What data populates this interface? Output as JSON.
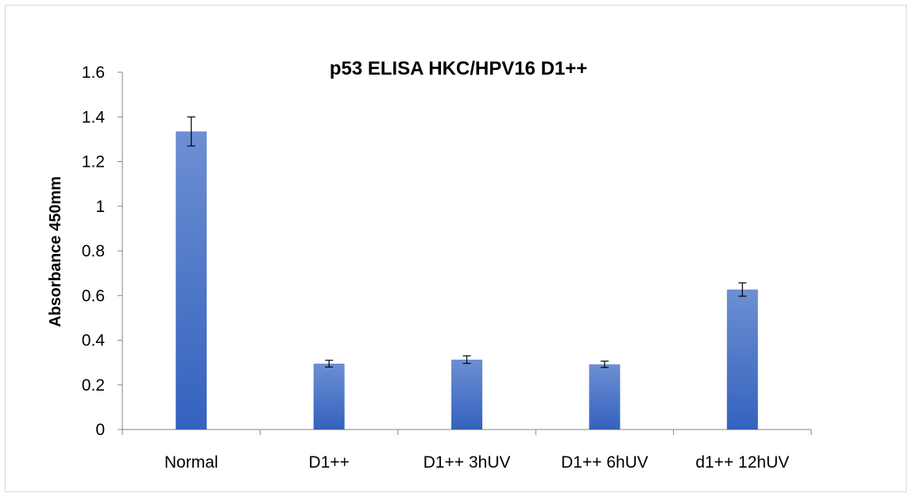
{
  "chart_data": {
    "type": "bar",
    "title": "p53 ELISA HKC/HPV16 D1++",
    "xlabel": "",
    "ylabel": "Absorbance 450mm",
    "categories": [
      "Normal",
      "D1++",
      "D1++ 3hUV",
      "D1++ 6hUV",
      "d1++ 12hUV"
    ],
    "values": [
      1.335,
      0.295,
      0.313,
      0.292,
      0.627
    ],
    "errors": [
      0.065,
      0.015,
      0.017,
      0.014,
      0.03
    ],
    "ylim": [
      0,
      1.6
    ],
    "yticks": [
      0,
      0.2,
      0.4,
      0.6,
      0.8,
      1,
      1.2,
      1.4,
      1.6
    ],
    "ytick_labels": [
      "0",
      "0.2",
      "0.4",
      "0.6",
      "0.8",
      "1",
      "1.2",
      "1.4",
      "1.6"
    ],
    "grid": false,
    "legend": "none",
    "bar_color": "#4472c4"
  }
}
